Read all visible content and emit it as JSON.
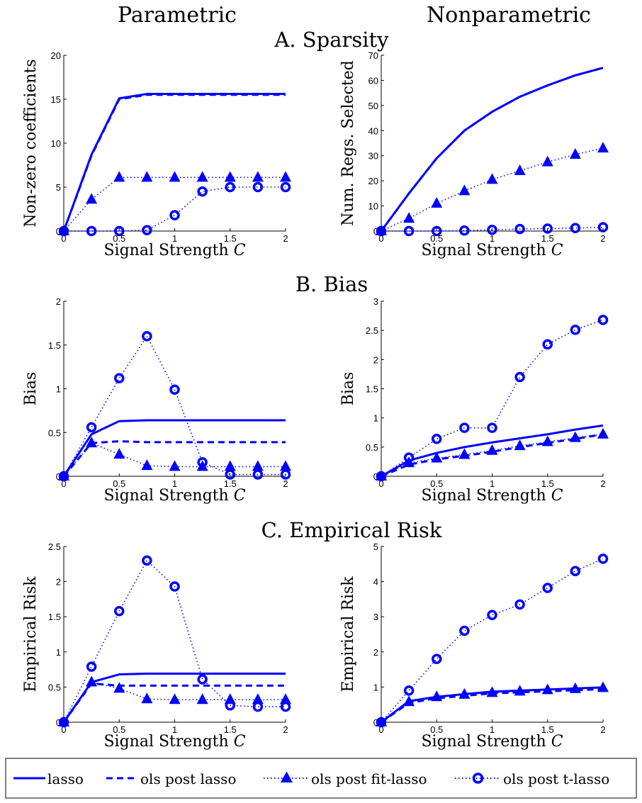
{
  "columns": [
    "Parametric",
    "Nonparametric"
  ],
  "sections": [
    "A. Sparsity",
    "B. Bias",
    "C. Empirical Risk"
  ],
  "colors": {
    "series": "#0000FF",
    "axis": "#000000"
  },
  "legend": [
    "lasso",
    "ols post lasso",
    "ols post fit-lasso",
    "ols post t-lasso"
  ],
  "chart_data": [
    {
      "id": "sparsity-parametric",
      "type": "line",
      "xlabel": "Signal Strength C",
      "ylabel": "Non-zero coefficients",
      "xlim": [
        0,
        2
      ],
      "ylim": [
        0,
        20
      ],
      "xticks": [
        "0",
        "0.5",
        "1",
        "1.5",
        "2"
      ],
      "yticks": [
        "0",
        "5",
        "10",
        "15",
        "20"
      ],
      "x": [
        0,
        0.25,
        0.5,
        0.75,
        1,
        1.25,
        1.5,
        1.75,
        2
      ],
      "series": [
        {
          "name": "lasso",
          "values": [
            0,
            8.7,
            15.1,
            15.6,
            15.6,
            15.6,
            15.6,
            15.6,
            15.6
          ]
        },
        {
          "name": "ols post lasso",
          "values": [
            0,
            8.6,
            15.0,
            15.5,
            15.5,
            15.5,
            15.5,
            15.5,
            15.5
          ]
        },
        {
          "name": "ols post fit-lasso",
          "values": [
            0,
            3.6,
            6.1,
            6.1,
            6.1,
            6.1,
            6.1,
            6.1,
            6.1
          ]
        },
        {
          "name": "ols post t-lasso",
          "values": [
            0,
            0,
            0,
            0.1,
            1.8,
            4.5,
            5.0,
            5.0,
            5.0
          ]
        }
      ]
    },
    {
      "id": "sparsity-nonparametric",
      "type": "line",
      "xlabel": "Signal Strength C",
      "ylabel": "Num. Regs. Selected",
      "xlim": [
        0,
        2
      ],
      "ylim": [
        0,
        70
      ],
      "xticks": [
        "0",
        "0.5",
        "1",
        "1.5",
        "2"
      ],
      "yticks": [
        "0",
        "10",
        "20",
        "30",
        "40",
        "50",
        "60",
        "70"
      ],
      "x": [
        0,
        0.25,
        0.5,
        0.75,
        1,
        1.25,
        1.5,
        1.75,
        2
      ],
      "series": [
        {
          "name": "lasso",
          "values": [
            0,
            15,
            29,
            40,
            47.5,
            53.5,
            58,
            62,
            65
          ]
        },
        {
          "name": "ols post lasso",
          "values": [
            0,
            15,
            29,
            40,
            47.5,
            53.5,
            58,
            62,
            65
          ]
        },
        {
          "name": "ols post fit-lasso",
          "values": [
            0,
            5,
            11,
            16,
            20.5,
            24,
            27.5,
            30.5,
            33
          ]
        },
        {
          "name": "ols post t-lasso",
          "values": [
            0,
            0,
            0,
            0.2,
            0.5,
            0.8,
            1.0,
            1.2,
            1.5
          ]
        }
      ]
    },
    {
      "id": "bias-parametric",
      "type": "line",
      "xlabel": "Signal Strength C",
      "ylabel": "Bias",
      "xlim": [
        0,
        2
      ],
      "ylim": [
        0,
        2
      ],
      "xticks": [
        "0",
        "0.5",
        "1",
        "1.5",
        "2"
      ],
      "yticks": [
        "0",
        "0.5",
        "1",
        "1.5",
        "2"
      ],
      "x": [
        0,
        0.25,
        0.5,
        0.75,
        1,
        1.25,
        1.5,
        1.75,
        2
      ],
      "series": [
        {
          "name": "lasso",
          "values": [
            0,
            0.48,
            0.63,
            0.64,
            0.64,
            0.64,
            0.64,
            0.64,
            0.64
          ]
        },
        {
          "name": "ols post lasso",
          "values": [
            0,
            0.38,
            0.4,
            0.39,
            0.39,
            0.39,
            0.39,
            0.39,
            0.39
          ]
        },
        {
          "name": "ols post fit-lasso",
          "values": [
            0,
            0.38,
            0.25,
            0.12,
            0.11,
            0.11,
            0.11,
            0.11,
            0.11
          ]
        },
        {
          "name": "ols post t-lasso",
          "values": [
            0,
            0.56,
            1.12,
            1.6,
            0.99,
            0.16,
            0.02,
            0.02,
            0.02
          ]
        }
      ]
    },
    {
      "id": "bias-nonparametric",
      "type": "line",
      "xlabel": "Signal Strength C",
      "ylabel": "Bias",
      "xlim": [
        0,
        2
      ],
      "ylim": [
        0,
        3
      ],
      "xticks": [
        "0",
        "0.5",
        "1",
        "1.5",
        "2"
      ],
      "yticks": [
        "0",
        "0.5",
        "1",
        "1.5",
        "2",
        "2.5",
        "3"
      ],
      "x": [
        0,
        0.25,
        0.5,
        0.75,
        1,
        1.25,
        1.5,
        1.75,
        2
      ],
      "series": [
        {
          "name": "lasso",
          "values": [
            0,
            0.27,
            0.4,
            0.5,
            0.58,
            0.65,
            0.72,
            0.8,
            0.87
          ]
        },
        {
          "name": "ols post lasso",
          "values": [
            0,
            0.2,
            0.29,
            0.35,
            0.42,
            0.5,
            0.57,
            0.64,
            0.72
          ]
        },
        {
          "name": "ols post fit-lasso",
          "values": [
            0,
            0.23,
            0.31,
            0.37,
            0.44,
            0.52,
            0.59,
            0.66,
            0.72
          ]
        },
        {
          "name": "ols post t-lasso",
          "values": [
            0,
            0.32,
            0.64,
            0.83,
            0.83,
            1.7,
            2.26,
            2.51,
            2.68
          ]
        }
      ]
    },
    {
      "id": "risk-parametric",
      "type": "line",
      "xlabel": "Signal Strength C",
      "ylabel": "Empirical Risk",
      "xlim": [
        0,
        2
      ],
      "ylim": [
        0,
        2.5
      ],
      "xticks": [
        "0",
        "0.5",
        "1",
        "1.5",
        "2"
      ],
      "yticks": [
        "0",
        "0.5",
        "1",
        "1.5",
        "2",
        "2.5"
      ],
      "x": [
        0,
        0.25,
        0.5,
        0.75,
        1,
        1.25,
        1.5,
        1.75,
        2
      ],
      "series": [
        {
          "name": "lasso",
          "values": [
            0,
            0.57,
            0.68,
            0.69,
            0.69,
            0.69,
            0.69,
            0.69,
            0.69
          ]
        },
        {
          "name": "ols post lasso",
          "values": [
            0,
            0.55,
            0.52,
            0.52,
            0.52,
            0.52,
            0.52,
            0.52,
            0.52
          ]
        },
        {
          "name": "ols post fit-lasso",
          "values": [
            0,
            0.57,
            0.48,
            0.33,
            0.32,
            0.32,
            0.32,
            0.32,
            0.32
          ]
        },
        {
          "name": "ols post t-lasso",
          "values": [
            0,
            0.79,
            1.58,
            2.3,
            1.93,
            0.61,
            0.24,
            0.22,
            0.22
          ]
        }
      ]
    },
    {
      "id": "risk-nonparametric",
      "type": "line",
      "xlabel": "Signal Strength C",
      "ylabel": "Empirical Risk",
      "xlim": [
        0,
        2
      ],
      "ylim": [
        0,
        5
      ],
      "xticks": [
        "0",
        "0.5",
        "1",
        "1.5",
        "2"
      ],
      "yticks": [
        "0",
        "1",
        "2",
        "3",
        "4",
        "5"
      ],
      "x": [
        0,
        0.25,
        0.5,
        0.75,
        1,
        1.25,
        1.5,
        1.75,
        2
      ],
      "series": [
        {
          "name": "lasso",
          "values": [
            0,
            0.6,
            0.72,
            0.8,
            0.87,
            0.9,
            0.93,
            0.96,
            0.99
          ]
        },
        {
          "name": "ols post lasso",
          "values": [
            0,
            0.55,
            0.68,
            0.75,
            0.82,
            0.85,
            0.88,
            0.91,
            0.94
          ]
        },
        {
          "name": "ols post fit-lasso",
          "values": [
            0,
            0.58,
            0.72,
            0.79,
            0.84,
            0.88,
            0.92,
            0.95,
            0.98
          ]
        },
        {
          "name": "ols post t-lasso",
          "values": [
            0,
            0.9,
            1.8,
            2.6,
            3.05,
            3.35,
            3.82,
            4.3,
            4.65
          ]
        }
      ]
    }
  ]
}
